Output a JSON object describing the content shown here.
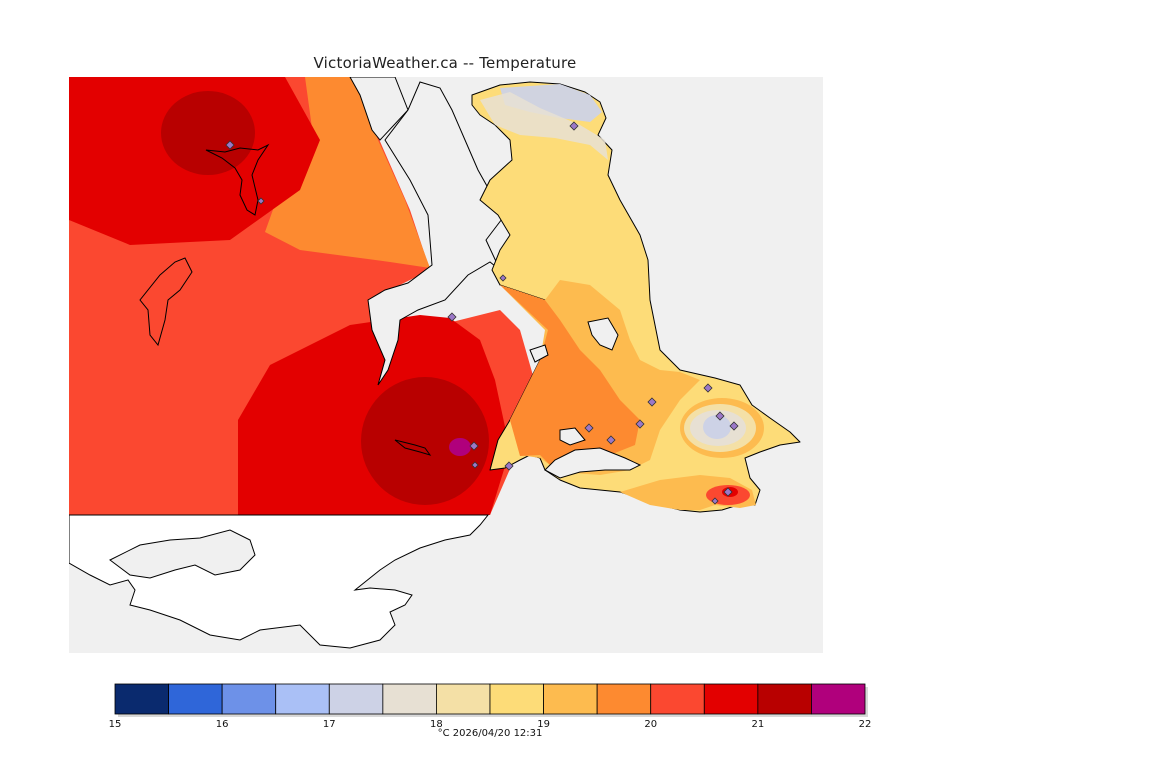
{
  "header": {
    "title": "VictoriaWeather.ca -- Temperature"
  },
  "legend": {
    "colors": [
      "#0a2a6e",
      "#2f66d9",
      "#6d91e8",
      "#aac0f6",
      "#cdd2e6",
      "#e7e0d3",
      "#f4e0a6",
      "#fddc78",
      "#fdbb4f",
      "#fd8a30",
      "#fb4830",
      "#e30000",
      "#b80000",
      "#b0007c"
    ],
    "tick_labels": [
      "15",
      "16",
      "17",
      "18",
      "19",
      "20",
      "21",
      "22"
    ],
    "unit": "°C",
    "timestamp": "2026/04/20 12:31"
  },
  "footer": {
    "text": "°C   2026/04/20 12:31"
  },
  "map_colors": {
    "water": "#f0f0f0",
    "land_outline": "#000000",
    "station_fill": "#9b78c8"
  },
  "icons": {
    "station_marker": "diamond-icon"
  }
}
